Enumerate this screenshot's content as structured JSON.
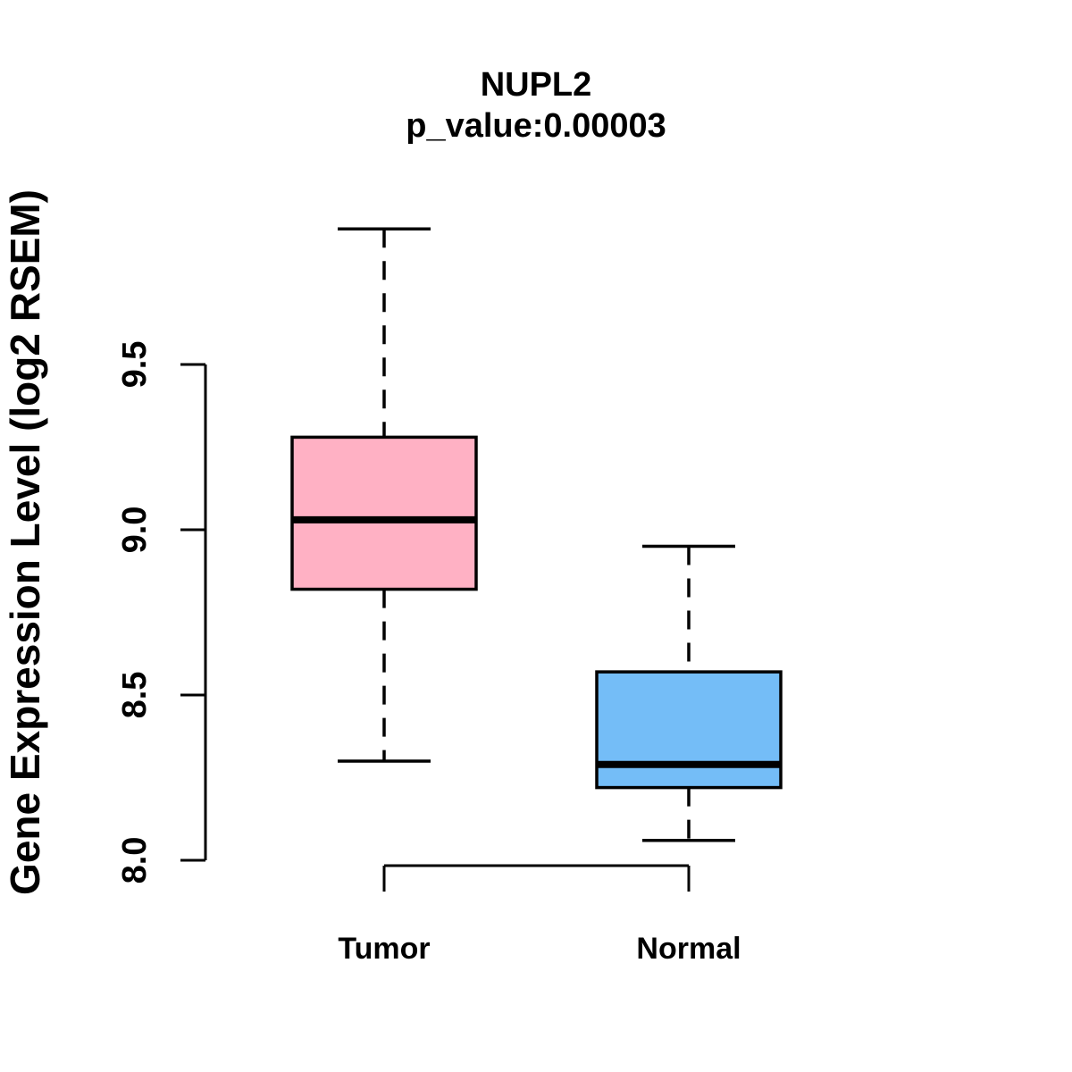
{
  "chart_data": {
    "type": "boxplot",
    "title": "NUPL2",
    "subtitle": "p_value:0.00003",
    "ylabel": "Gene Expression Level (log2 RSEM)",
    "xlabel": "",
    "categories": [
      "Tumor",
      "Normal"
    ],
    "series": [
      {
        "name": "Tumor",
        "whisker_low": 8.3,
        "q1": 8.82,
        "median": 9.03,
        "q3": 9.28,
        "whisker_high": 9.91,
        "box_color": "#FFB1C4"
      },
      {
        "name": "Normal",
        "whisker_low": 8.06,
        "q1": 8.22,
        "median": 8.29,
        "q3": 8.57,
        "whisker_high": 8.95,
        "box_color": "#74BDF7"
      }
    ],
    "y_axis": {
      "ticks": [
        8.0,
        8.5,
        9.0,
        9.5
      ],
      "tick_labels": [
        "8.0",
        "8.5",
        "9.0",
        "9.5"
      ],
      "range": [
        7.9,
        10.0
      ],
      "tick_labels_rotated": true
    },
    "grid": false,
    "legend": "none",
    "whisker_style": "dashed"
  },
  "colors": {
    "stroke": "#000000",
    "background": "#FFFFFF",
    "tumor_box": "#FFB1C4",
    "normal_box": "#74BDF7"
  }
}
